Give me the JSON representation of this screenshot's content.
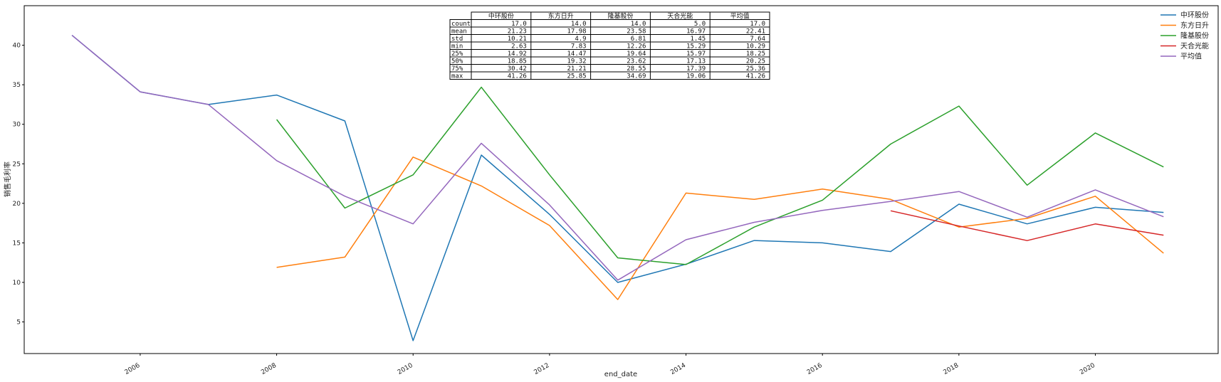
{
  "chart_data": {
    "type": "line",
    "title": "",
    "xlabel": "end_date",
    "ylabel": "销售毛利率",
    "xlim": [
      2004.3,
      2021.8
    ],
    "ylim": [
      1.0,
      45.0
    ],
    "xticks": [
      2006,
      2008,
      2010,
      2012,
      2014,
      2016,
      2018,
      2020
    ],
    "yticks": [
      5,
      10,
      15,
      20,
      25,
      30,
      35,
      40
    ],
    "x": [
      2005,
      2006,
      2007,
      2008,
      2009,
      2010,
      2011,
      2012,
      2013,
      2014,
      2015,
      2016,
      2017,
      2018,
      2019,
      2020,
      2021
    ],
    "legend_position": "top-right",
    "grid": false,
    "series": [
      {
        "name": "中环股份",
        "color": "#1f77b4",
        "values": [
          41.26,
          34.1,
          32.5,
          33.7,
          30.42,
          2.63,
          26.1,
          18.6,
          10.0,
          12.3,
          15.3,
          15.0,
          13.9,
          19.9,
          17.4,
          19.5,
          18.85
        ]
      },
      {
        "name": "东方日升",
        "color": "#ff7f0e",
        "values": [
          null,
          null,
          null,
          11.9,
          13.2,
          25.85,
          22.2,
          17.2,
          7.83,
          21.3,
          20.5,
          21.8,
          20.5,
          17.0,
          18.1,
          20.9,
          13.7
        ]
      },
      {
        "name": "隆基股份",
        "color": "#2ca02c",
        "values": [
          null,
          null,
          null,
          30.6,
          19.4,
          23.6,
          34.69,
          23.6,
          13.1,
          12.26,
          17.0,
          20.4,
          27.5,
          32.3,
          22.3,
          28.9,
          24.6
        ]
      },
      {
        "name": "天合光能",
        "color": "#d62728",
        "values": [
          null,
          null,
          null,
          null,
          null,
          null,
          null,
          null,
          null,
          null,
          null,
          null,
          19.06,
          17.13,
          15.29,
          17.39,
          15.97
        ]
      },
      {
        "name": "平均值",
        "color": "#9467bd",
        "values": [
          41.26,
          34.1,
          32.5,
          25.4,
          20.9,
          17.4,
          27.6,
          19.8,
          10.29,
          15.4,
          17.6,
          19.1,
          20.25,
          21.5,
          18.25,
          21.7,
          18.3
        ]
      }
    ],
    "stats_table": {
      "columns": [
        "中环股份",
        "东方日升",
        "隆基股份",
        "天合光能",
        "平均值"
      ],
      "rows": [
        {
          "label": "count",
          "values": [
            "17.0",
            "14.0",
            "14.0",
            "5.0",
            "17.0"
          ]
        },
        {
          "label": "mean",
          "values": [
            "21.23",
            "17.98",
            "23.58",
            "16.97",
            "22.41"
          ]
        },
        {
          "label": "std",
          "values": [
            "10.21",
            "4.9",
            "6.81",
            "1.45",
            "7.64"
          ]
        },
        {
          "label": "min",
          "values": [
            "2.63",
            "7.83",
            "12.26",
            "15.29",
            "10.29"
          ]
        },
        {
          "label": "25%",
          "values": [
            "14.92",
            "14.47",
            "19.64",
            "15.97",
            "18.25"
          ]
        },
        {
          "label": "50%",
          "values": [
            "18.85",
            "19.32",
            "23.62",
            "17.13",
            "20.25"
          ]
        },
        {
          "label": "75%",
          "values": [
            "30.42",
            "21.21",
            "28.55",
            "17.39",
            "25.36"
          ]
        },
        {
          "label": "max",
          "values": [
            "41.26",
            "25.85",
            "34.69",
            "19.06",
            "41.26"
          ]
        }
      ]
    }
  }
}
